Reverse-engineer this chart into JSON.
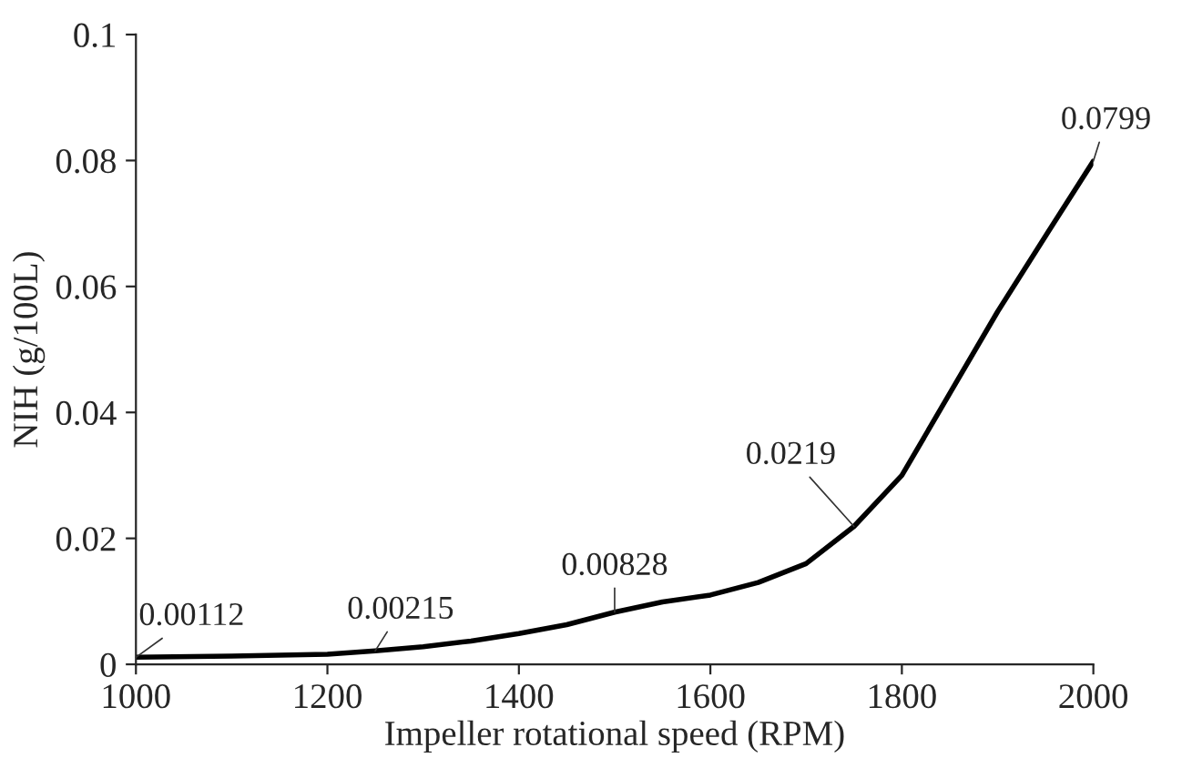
{
  "chart_data": {
    "type": "line",
    "xlabel": "Impeller rotational speed (RPM)",
    "ylabel": "NIH (g/100L)",
    "x": [
      1000,
      1100,
      1200,
      1250,
      1300,
      1350,
      1400,
      1450,
      1500,
      1550,
      1600,
      1650,
      1700,
      1750,
      1800,
      1850,
      1900,
      1950,
      2000
    ],
    "series": [
      {
        "color": "#000000",
        "values": [
          0.00112,
          0.0013,
          0.0016,
          0.00215,
          0.0028,
          0.0037,
          0.0049,
          0.0063,
          0.00828,
          0.0099,
          0.011,
          0.013,
          0.016,
          0.0219,
          0.03,
          0.043,
          0.056,
          0.068,
          0.0799
        ],
        "value_labels": [
          "0.00112",
          null,
          null,
          "0.00215",
          null,
          null,
          null,
          null,
          "0.00828",
          null,
          null,
          null,
          null,
          "0.0219",
          null,
          null,
          null,
          null,
          "0.0799"
        ]
      }
    ],
    "xlim": [
      1000,
      2000
    ],
    "xticks": [
      1000,
      1200,
      1400,
      1600,
      1800,
      2000
    ],
    "ylim": [
      0,
      0.1
    ],
    "yticks": [
      0,
      0.02,
      0.04,
      0.06,
      0.08,
      0.1
    ],
    "grid": false,
    "legend": false,
    "marker": "none",
    "line_style": "solid"
  }
}
